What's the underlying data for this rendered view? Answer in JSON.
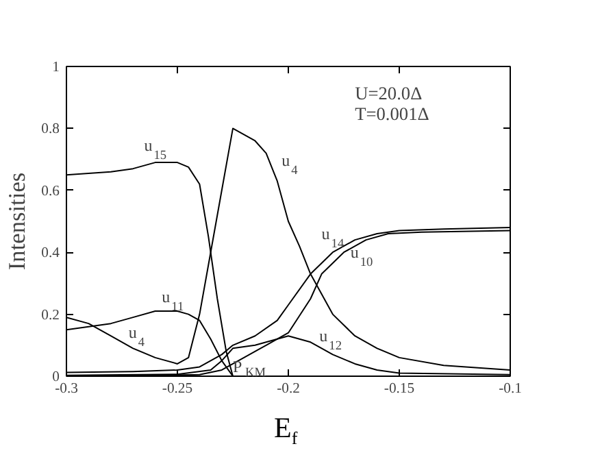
{
  "chart_data": {
    "type": "line",
    "xlabel": "E$_{f}$",
    "ylabel": "Intensities",
    "xlim": [
      -0.3,
      -0.1
    ],
    "ylim": [
      0,
      1
    ],
    "xticks": [
      -0.3,
      -0.25,
      -0.2,
      -0.15,
      -0.1
    ],
    "yticks": [
      0,
      {
        "value": 0.2,
        "label": "0.2"
      },
      {
        "value": 0.4,
        "label": "0.4"
      },
      {
        "value": 0.6,
        "label": "0.6"
      },
      {
        "value": 0.8,
        "label": "0.8"
      },
      1
    ],
    "grid": false,
    "marker": "none",
    "line_style": "solid",
    "series": [
      {
        "color": "#000000",
        "x": [
          -0.3,
          -0.28,
          -0.27,
          -0.26,
          -0.25,
          -0.245,
          -0.24,
          -0.236,
          -0.232,
          -0.228,
          -0.225
        ],
        "values": [
          0.65,
          0.66,
          0.67,
          0.69,
          0.69,
          0.675,
          0.62,
          0.45,
          0.25,
          0.08,
          0.0
        ]
      },
      {
        "color": "#000000",
        "x": [
          -0.3,
          -0.29,
          -0.28,
          -0.27,
          -0.26,
          -0.25,
          -0.245,
          -0.24,
          -0.235,
          -0.23,
          -0.225,
          -0.215,
          -0.21,
          -0.205,
          -0.2,
          -0.195,
          -0.19,
          -0.18,
          -0.17,
          -0.16,
          -0.15,
          -0.13,
          -0.1
        ],
        "values": [
          0.19,
          0.17,
          0.13,
          0.09,
          0.06,
          0.04,
          0.06,
          0.2,
          0.4,
          0.6,
          0.8,
          0.76,
          0.72,
          0.63,
          0.5,
          0.42,
          0.33,
          0.2,
          0.13,
          0.09,
          0.06,
          0.035,
          0.02
        ]
      },
      {
        "color": "#000000",
        "x": [
          -0.3,
          -0.28,
          -0.27,
          -0.26,
          -0.25,
          -0.245,
          -0.24,
          -0.235,
          -0.23,
          -0.225
        ],
        "values": [
          0.15,
          0.17,
          0.19,
          0.21,
          0.21,
          0.2,
          0.18,
          0.12,
          0.05,
          0.0
        ]
      },
      {
        "color": "#000000",
        "x": [
          -0.3,
          -0.27,
          -0.25,
          -0.24,
          -0.23,
          -0.225,
          -0.215,
          -0.205,
          -0.2,
          -0.19,
          -0.18,
          -0.17,
          -0.16,
          -0.15,
          -0.13,
          -0.1
        ],
        "values": [
          0.012,
          0.015,
          0.02,
          0.03,
          0.07,
          0.1,
          0.13,
          0.18,
          0.23,
          0.33,
          0.4,
          0.44,
          0.46,
          0.47,
          0.475,
          0.48
        ]
      },
      {
        "color": "#000000",
        "x": [
          -0.3,
          -0.26,
          -0.24,
          -0.23,
          -0.22,
          -0.21,
          -0.2,
          -0.19,
          -0.185,
          -0.175,
          -0.165,
          -0.155,
          -0.14,
          -0.1
        ],
        "values": [
          0.0,
          0.002,
          0.005,
          0.02,
          0.06,
          0.1,
          0.14,
          0.25,
          0.33,
          0.4,
          0.44,
          0.46,
          0.465,
          0.47
        ]
      },
      {
        "color": "#000000",
        "x": [
          -0.3,
          -0.25,
          -0.235,
          -0.23,
          -0.225,
          -0.215,
          -0.205,
          -0.2,
          -0.19,
          -0.18,
          -0.17,
          -0.16,
          -0.15,
          -0.1
        ],
        "values": [
          0.003,
          0.006,
          0.02,
          0.05,
          0.09,
          0.1,
          0.12,
          0.13,
          0.11,
          0.07,
          0.04,
          0.02,
          0.01,
          0.005
        ]
      }
    ],
    "annotations": [
      "u$_{15}$",
      "u$_{4}$",
      "u$_{14}$",
      "u$_{10}$",
      "u$_{11}$",
      "u$_{4}$",
      "u$_{12}$",
      {
        "text": "P$_{KM}$",
        "x": -0.225,
        "y": 0.0
      },
      "U=20.0Δ",
      "T=0.001Δ"
    ]
  }
}
